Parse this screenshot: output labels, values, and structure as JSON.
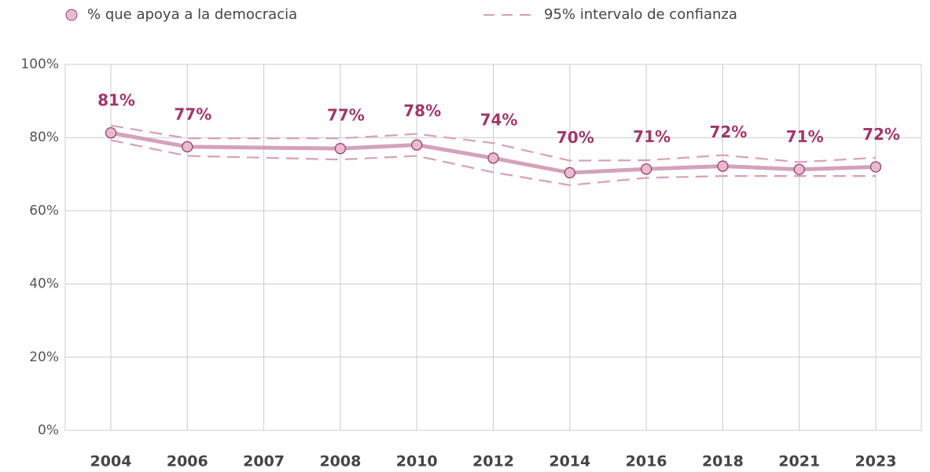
{
  "chart_data": {
    "type": "line",
    "categories": [
      "2004",
      "2006",
      "2007",
      "2008",
      "2010",
      "2012",
      "2014",
      "2016",
      "2018",
      "2021",
      "2023"
    ],
    "series": [
      {
        "name": "% que apoya a la democracia",
        "color": "#d4a2ba",
        "marker_color": "#e8bccf",
        "marker_stroke": "#9c3d6b",
        "label_color": "#a0376a",
        "x": [
          "2004",
          "2006",
          "2008",
          "2010",
          "2012",
          "2014",
          "2016",
          "2018",
          "2021",
          "2023"
        ],
        "values": [
          81.3,
          77.5,
          77.0,
          78.0,
          74.4,
          70.4,
          71.4,
          72.2,
          71.3,
          72.0
        ],
        "value_labels": [
          "81%",
          "77%",
          "77%",
          "78%",
          "74%",
          "70%",
          "71%",
          "72%",
          "71%",
          "72%"
        ]
      }
    ],
    "interval": {
      "name": "95% intervalo de confianza",
      "color": "#d4a2ba",
      "x": [
        "2004",
        "2006",
        "2007",
        "2008",
        "2010",
        "2012",
        "2014",
        "2016",
        "2018",
        "2021",
        "2023"
      ],
      "upper": [
        83.3,
        79.8,
        79.8,
        79.8,
        81.0,
        78.5,
        73.7,
        73.8,
        75.2,
        73.3,
        74.5
      ],
      "lower": [
        79.3,
        75.0,
        74.5,
        74.0,
        75.0,
        70.5,
        67.0,
        69.0,
        69.5,
        69.5,
        69.5
      ]
    },
    "ylim": [
      0,
      100
    ],
    "yticks": [
      {
        "value": 0,
        "label": "0%"
      },
      {
        "value": 20,
        "label": "20%"
      },
      {
        "value": 40,
        "label": "40%"
      },
      {
        "value": 60,
        "label": "60%"
      },
      {
        "value": 80,
        "label": "80%"
      },
      {
        "value": 100,
        "label": "100%"
      }
    ],
    "grid": true
  }
}
